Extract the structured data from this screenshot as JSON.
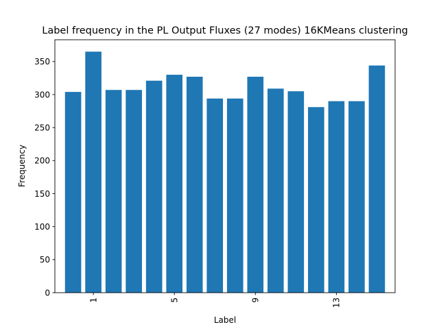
{
  "chart_data": {
    "type": "bar",
    "title": "Label frequency in the PL Output Fluxes (27 modes) 16KMeans clustering",
    "xlabel": "Label",
    "ylabel": "Frequency",
    "categories": [
      0,
      1,
      2,
      3,
      4,
      5,
      6,
      7,
      8,
      9,
      10,
      11,
      12,
      13,
      14,
      15
    ],
    "values": [
      304,
      365,
      307,
      307,
      321,
      330,
      327,
      294,
      294,
      327,
      309,
      305,
      281,
      290,
      290,
      344
    ],
    "x_ticks": [
      1,
      5,
      9,
      13
    ],
    "x_tick_rotation": 90,
    "y_ticks": [
      0,
      50,
      100,
      150,
      200,
      250,
      300,
      350
    ],
    "ylim": [
      0,
      383
    ],
    "xlim": [
      -0.9,
      15.9
    ],
    "grid": false,
    "legend": "none",
    "bar_color": "#1f77b4"
  }
}
